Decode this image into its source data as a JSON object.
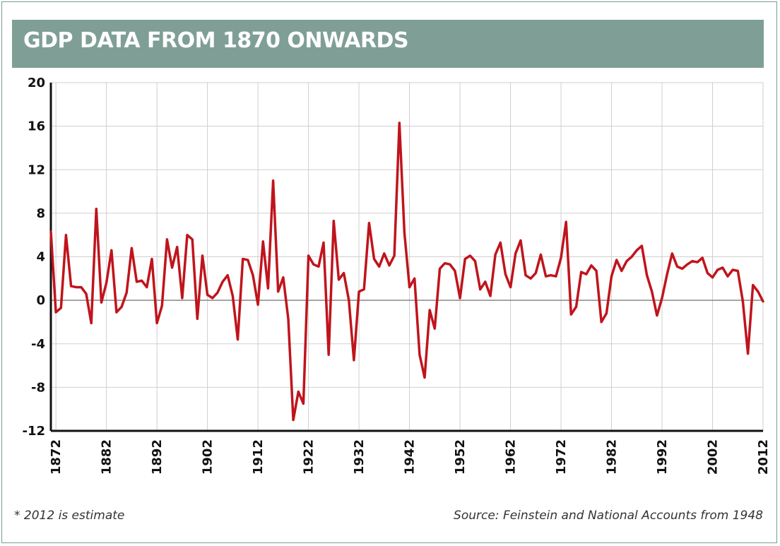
{
  "chart_data": {
    "type": "line",
    "title": "GDP DATA FROM 1870 ONWARDS",
    "xlim": [
      1871,
      2012
    ],
    "ylim": [
      -12,
      20
    ],
    "yticks": [
      20,
      16,
      12,
      8,
      4,
      0,
      -4,
      -8,
      -12
    ],
    "xticks": [
      1872,
      1882,
      1892,
      1902,
      1912,
      1922,
      1932,
      1942,
      1952,
      1962,
      1972,
      1982,
      1992,
      2002,
      2012
    ],
    "grid": true,
    "color": "#c0141c",
    "series": [
      {
        "x": [
          1871,
          1872,
          1873,
          1874,
          1875,
          1876,
          1877,
          1878,
          1879,
          1880,
          1881,
          1882,
          1883,
          1884,
          1885,
          1886,
          1887,
          1888,
          1889,
          1890,
          1891,
          1892,
          1893,
          1894,
          1895,
          1896,
          1897,
          1898,
          1899,
          1900,
          1901,
          1902,
          1903,
          1904,
          1905,
          1906,
          1907,
          1908,
          1909,
          1910,
          1911,
          1912,
          1913,
          1914,
          1915,
          1916,
          1917,
          1918,
          1919,
          1920,
          1921,
          1922,
          1923,
          1924,
          1925,
          1926,
          1927,
          1928,
          1929,
          1930,
          1931,
          1932,
          1933,
          1934,
          1935,
          1936,
          1937,
          1938,
          1939,
          1940,
          1941,
          1942,
          1943,
          1944,
          1945,
          1946,
          1947,
          1948,
          1949,
          1950,
          1951,
          1952,
          1953,
          1954,
          1955,
          1956,
          1957,
          1958,
          1959,
          1960,
          1961,
          1962,
          1963,
          1964,
          1965,
          1966,
          1967,
          1968,
          1969,
          1970,
          1971,
          1972,
          1973,
          1974,
          1975,
          1976,
          1977,
          1978,
          1979,
          1980,
          1981,
          1982,
          1983,
          1984,
          1985,
          1986,
          1987,
          1988,
          1989,
          1990,
          1991,
          1992,
          1993,
          1994,
          1995,
          1996,
          1997,
          1998,
          1999,
          2000,
          2001,
          2002,
          2003,
          2004,
          2005,
          2006,
          2007,
          2008,
          2009,
          2010,
          2011,
          2012
        ],
        "values": [
          6.3,
          -1.1,
          -0.7,
          6.0,
          1.3,
          1.2,
          1.2,
          0.6,
          -2.1,
          8.4,
          -0.2,
          1.6,
          4.6,
          -1.1,
          -0.6,
          0.7,
          4.8,
          1.7,
          1.8,
          1.2,
          3.8,
          -2.1,
          -0.5,
          5.6,
          3.0,
          4.9,
          0.2,
          6.0,
          5.6,
          -1.7,
          4.1,
          0.5,
          0.2,
          0.7,
          1.7,
          2.3,
          0.4,
          -3.6,
          3.8,
          3.7,
          2.3,
          -0.4,
          5.4,
          1.1,
          11.0,
          0.8,
          2.1,
          -1.7,
          -11.0,
          -8.4,
          -9.5,
          4.1,
          3.3,
          3.1,
          5.3,
          -5.0,
          7.3,
          1.9,
          2.5,
          0.0,
          -5.5,
          0.8,
          1.0,
          7.1,
          3.8,
          3.1,
          4.3,
          3.2,
          4.1,
          16.3,
          6.2,
          1.2,
          2.0,
          -5.0,
          -7.1,
          -0.9,
          -2.6,
          2.9,
          3.4,
          3.3,
          2.7,
          0.2,
          3.8,
          4.1,
          3.6,
          1.0,
          1.7,
          0.4,
          4.2,
          5.3,
          2.4,
          1.2,
          4.3,
          5.5,
          2.3,
          2.0,
          2.5,
          4.2,
          2.2,
          2.3,
          2.2,
          3.9,
          7.2,
          -1.3,
          -0.6,
          2.6,
          2.4,
          3.2,
          2.7,
          -2.0,
          -1.2,
          2.2,
          3.7,
          2.7,
          3.6,
          4.0,
          4.6,
          5.0,
          2.3,
          0.8,
          -1.4,
          0.2,
          2.4,
          4.3,
          3.1,
          2.9,
          3.3,
          3.6,
          3.5,
          3.9,
          2.5,
          2.1,
          2.8,
          3.0,
          2.2,
          2.8,
          2.7,
          -0.1,
          -4.9,
          1.4,
          0.8,
          -0.1
        ]
      }
    ]
  },
  "footnote": "* 2012 is estimate",
  "source": "Source: Feinstein and National Accounts from 1948"
}
